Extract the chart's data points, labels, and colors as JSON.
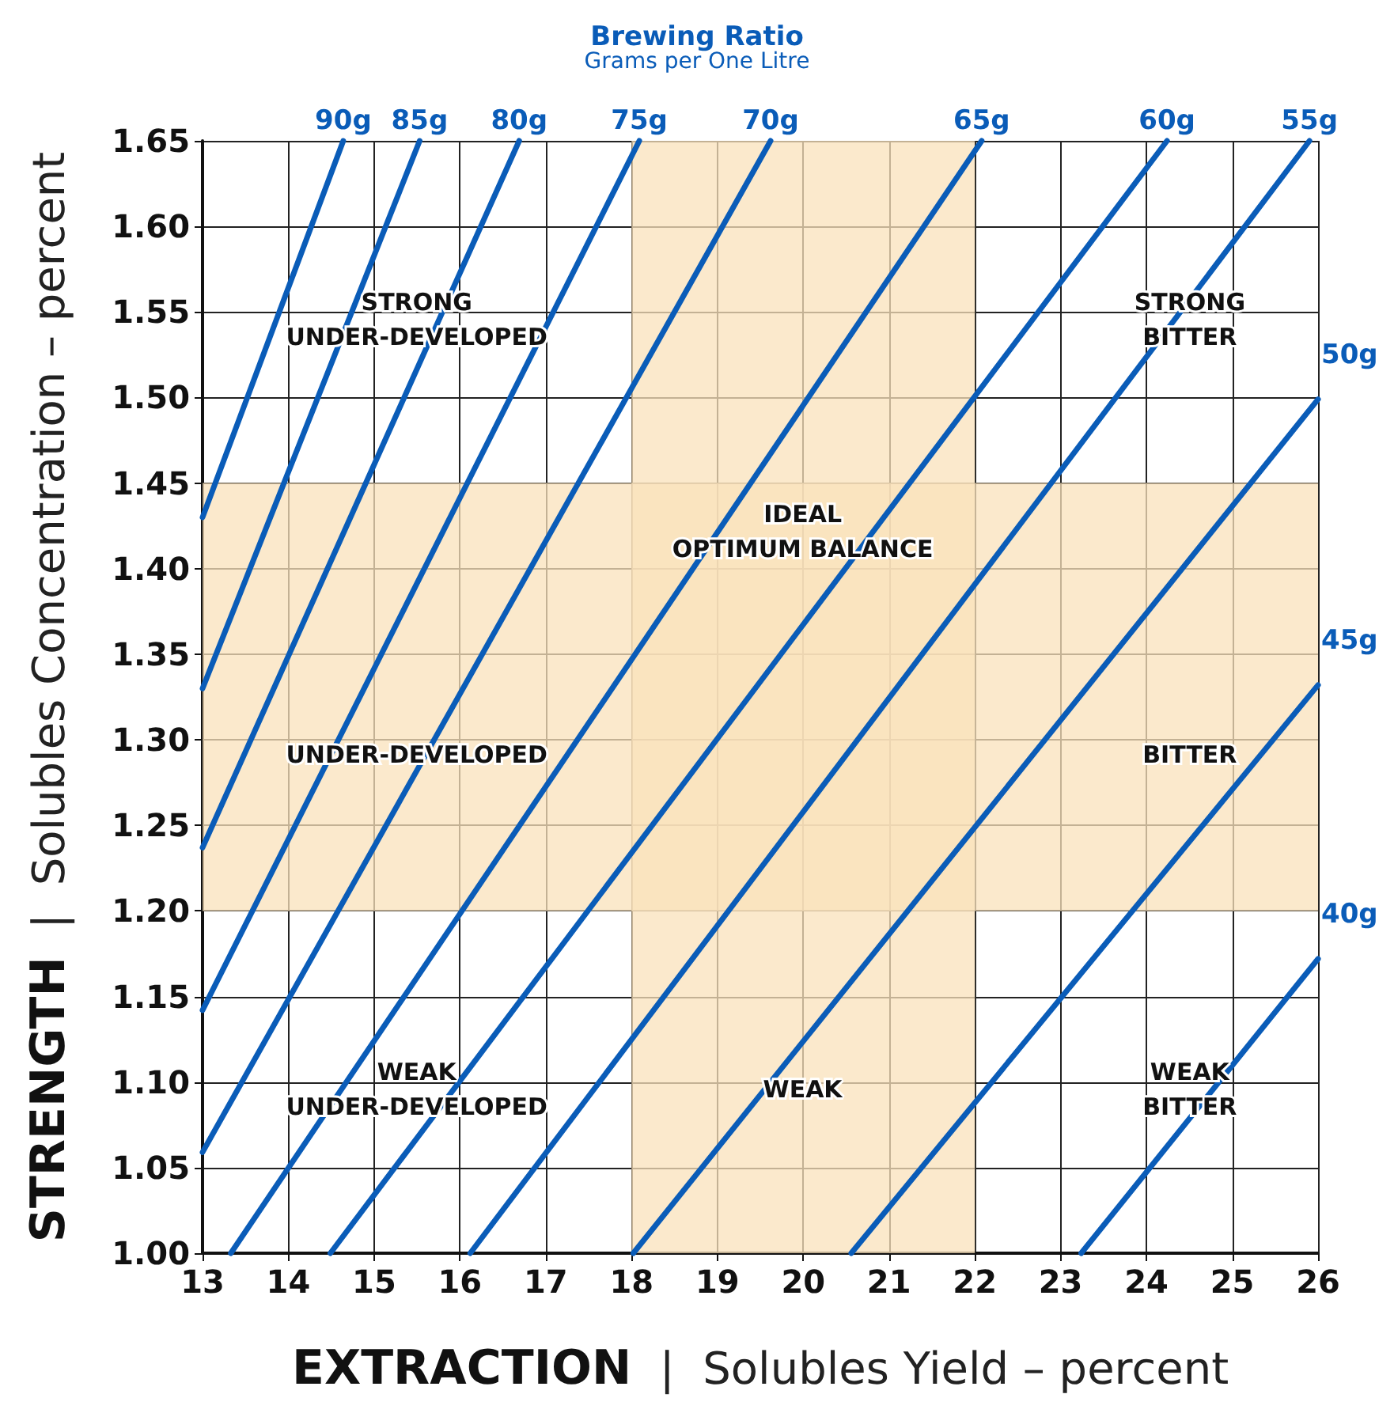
{
  "chart_data": {
    "type": "line",
    "title": "Brewing Ratio",
    "subtitle": "Grams per One Litre",
    "xlabel": "EXTRACTION | Solubles Yield – percent",
    "ylabel": "STRENGTH | Solubles Concentration – percent",
    "xlim": [
      13,
      26
    ],
    "xticks": [
      13,
      14,
      15,
      16,
      17,
      18,
      19,
      20,
      21,
      22,
      23,
      24,
      25,
      26
    ],
    "ylim": [
      1.0,
      1.65
    ],
    "yticks": [
      {
        "value": 1.0,
        "label": "1.00"
      },
      {
        "value": 1.05,
        "label": "1.05"
      },
      {
        "value": 1.1,
        "label": "1.10"
      },
      {
        "value": 1.15,
        "label": "1.15"
      },
      {
        "value": 1.2,
        "label": "1.20"
      },
      {
        "value": 1.25,
        "label": "1.25"
      },
      {
        "value": 1.3,
        "label": "1.30"
      },
      {
        "value": 1.35,
        "label": "1.35"
      },
      {
        "value": 1.4,
        "label": "1.40"
      },
      {
        "value": 1.45,
        "label": "1.45"
      },
      {
        "value": 1.5,
        "label": "1.50"
      },
      {
        "value": 1.55,
        "label": "1.55"
      },
      {
        "value": 1.6,
        "label": "1.60"
      },
      {
        "value": 1.65,
        "label": "1.65"
      }
    ],
    "grid": true,
    "legend": false,
    "marker": "none",
    "line_style": "solid",
    "bands": [
      {
        "axis": "x",
        "from": 18,
        "to": 22,
        "color": "#fae1bb"
      },
      {
        "axis": "y",
        "from": 1.2,
        "to": 1.45,
        "color": "#fae1bb"
      }
    ],
    "series": [
      {
        "name": "90g",
        "color": "#0a5cb8",
        "x": [
          13,
          14.64
        ],
        "values": [
          1.43,
          1.65
        ]
      },
      {
        "name": "85g",
        "color": "#0a5cb8",
        "x": [
          13,
          15.53
        ],
        "values": [
          1.33,
          1.65
        ]
      },
      {
        "name": "80g",
        "color": "#0a5cb8",
        "x": [
          13,
          16.69
        ],
        "values": [
          1.237,
          1.65
        ]
      },
      {
        "name": "75g",
        "color": "#0a5cb8",
        "x": [
          13,
          18.09
        ],
        "values": [
          1.142,
          1.65
        ]
      },
      {
        "name": "70g",
        "color": "#0a5cb8",
        "x": [
          13,
          19.62
        ],
        "values": [
          1.059,
          1.65
        ]
      },
      {
        "name": "65g",
        "color": "#0a5cb8",
        "x": [
          13.33,
          22.08
        ],
        "values": [
          1.0,
          1.65
        ]
      },
      {
        "name": "60g",
        "color": "#0a5cb8",
        "x": [
          14.49,
          24.24
        ],
        "values": [
          1.0,
          1.65
        ]
      },
      {
        "name": "55g",
        "color": "#0a5cb8",
        "x": [
          16.12,
          25.9
        ],
        "values": [
          1.0,
          1.65
        ]
      },
      {
        "name": "50g",
        "color": "#0a5cb8",
        "x": [
          18.02,
          26
        ],
        "values": [
          1.0,
          1.499
        ]
      },
      {
        "name": "45g",
        "color": "#0a5cb8",
        "x": [
          20.56,
          26
        ],
        "values": [
          1.0,
          1.332
        ]
      },
      {
        "name": "40g",
        "color": "#0a5cb8",
        "x": [
          23.24,
          26
        ],
        "values": [
          1.0,
          1.172
        ]
      }
    ],
    "annotations": [
      "STRONG\nUNDER-DEVELOPED",
      "STRONG\nBITTER",
      "IDEAL\nOPTIMUM BALANCE",
      "UNDER-DEVELOPED",
      "BITTER",
      "WEAK\nUNDER-DEVELOPED",
      "WEAK",
      "WEAK\nBITTER"
    ]
  }
}
